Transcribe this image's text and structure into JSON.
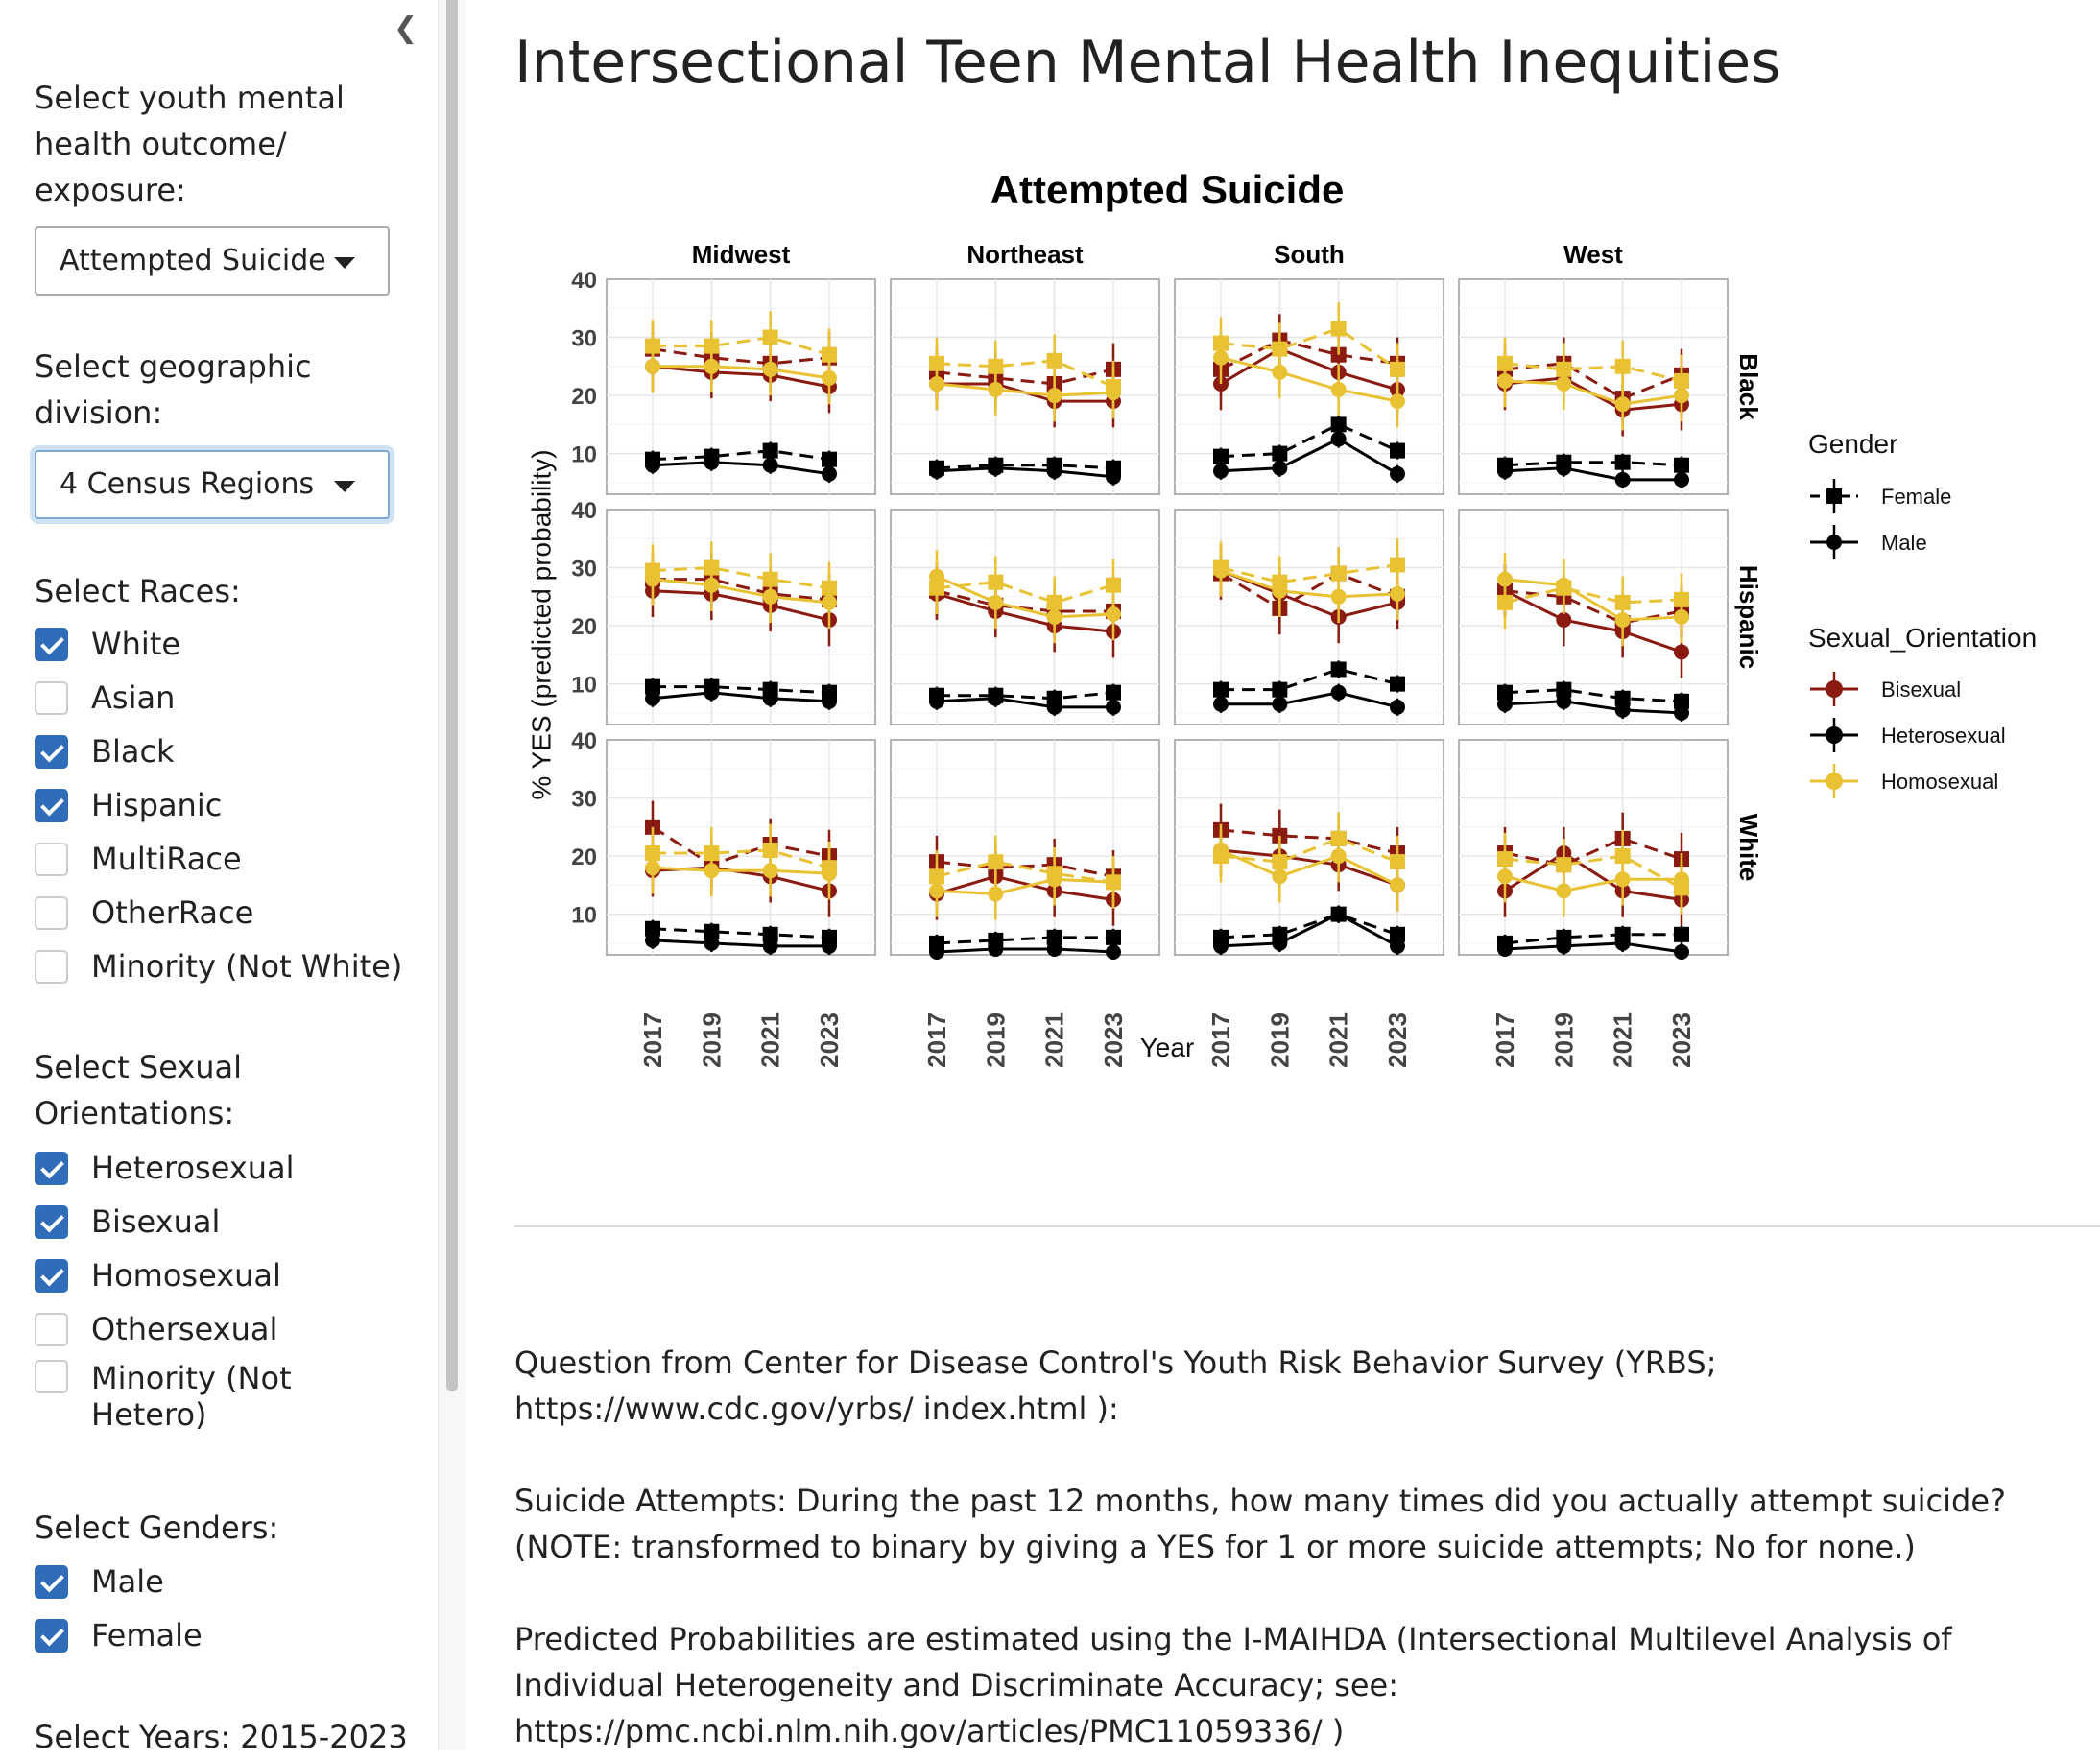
{
  "sidebar": {
    "outcome_label": "Select youth mental health outcome/ exposure:",
    "outcome_value": "Attempted Suicide",
    "division_label": "Select geographic division:",
    "division_value": "4 Census Regions",
    "races_label": "Select Races:",
    "races": [
      {
        "label": "White",
        "checked": true
      },
      {
        "label": "Asian",
        "checked": false
      },
      {
        "label": "Black",
        "checked": true
      },
      {
        "label": "Hispanic",
        "checked": true
      },
      {
        "label": "MultiRace",
        "checked": false
      },
      {
        "label": "OtherRace",
        "checked": false
      },
      {
        "label": "Minority (Not White)",
        "checked": false
      }
    ],
    "orient_label": "Select Sexual Orientations:",
    "orientations": [
      {
        "label": "Heterosexual",
        "checked": true
      },
      {
        "label": "Bisexual",
        "checked": true
      },
      {
        "label": "Homosexual",
        "checked": true
      },
      {
        "label": "Othersexual",
        "checked": false
      },
      {
        "label": "Minority (Not Hetero)",
        "checked": false
      }
    ],
    "genders_label": "Select Genders:",
    "genders": [
      {
        "label": "Male",
        "checked": true
      },
      {
        "label": "Female",
        "checked": true
      }
    ],
    "years_label": "Select Years: 2015-2023"
  },
  "main": {
    "title": "Intersectional Teen Mental Health Inequities",
    "question_text": "Question from Center for Disease Control's Youth Risk Behavior Survey (YRBS; https://www.cdc.gov/yrbs/ index.html ):",
    "item_text": "Suicide Attempts: During the past 12 months, how many times did you actually attempt suicide? (NOTE: transformed to binary by giving a YES for 1 or more suicide attempts; No for none.)",
    "method_text": "Predicted Probabilities are estimated using the I-MAIHDA (Intersectional Multilevel Analysis of Individual Heterogeneity and Discriminate Accuracy; see: https://pmc.ncbi.nlm.nih.gov/articles/PMC11059336/ )"
  },
  "colors": {
    "Bisexual": "#8b1a10",
    "Heterosexual": "#000000",
    "Homosexual": "#e9c233",
    "checkbox": "#2f6db8"
  },
  "chart_data": {
    "type": "line",
    "title": "Attempted Suicide",
    "xlabel": "Year",
    "ylabel": "% YES (predicted probability)",
    "x": [
      2017,
      2019,
      2021,
      2023
    ],
    "ylim": [
      3,
      40
    ],
    "yticks": [
      10,
      20,
      30,
      40
    ],
    "columns": [
      "Midwest",
      "Northeast",
      "South",
      "West"
    ],
    "rows": [
      "Black",
      "Hispanic",
      "White"
    ],
    "legend": {
      "gender_title": "Gender",
      "genders": [
        "Female",
        "Male"
      ],
      "orientation_title": "Sexual_Orientation",
      "orientations": [
        "Bisexual",
        "Heterosexual",
        "Homosexual"
      ]
    },
    "panels": [
      {
        "row": "Black",
        "col": "Midwest",
        "series": [
          {
            "orientation": "Bisexual",
            "gender": "Female",
            "values": [
              28,
              26.5,
              25.5,
              26.5
            ]
          },
          {
            "orientation": "Bisexual",
            "gender": "Male",
            "values": [
              25,
              24,
              23.5,
              21.5
            ]
          },
          {
            "orientation": "Heterosexual",
            "gender": "Female",
            "values": [
              9,
              9.5,
              10.5,
              9
            ]
          },
          {
            "orientation": "Heterosexual",
            "gender": "Male",
            "values": [
              8,
              8.5,
              8,
              6.5
            ]
          },
          {
            "orientation": "Homosexual",
            "gender": "Female",
            "values": [
              28.5,
              28.5,
              30,
              27
            ]
          },
          {
            "orientation": "Homosexual",
            "gender": "Male",
            "values": [
              25,
              25,
              24.5,
              23
            ]
          }
        ]
      },
      {
        "row": "Black",
        "col": "Northeast",
        "series": [
          {
            "orientation": "Bisexual",
            "gender": "Female",
            "values": [
              24,
              23,
              22,
              24.5
            ]
          },
          {
            "orientation": "Bisexual",
            "gender": "Male",
            "values": [
              22,
              22,
              19,
              19
            ]
          },
          {
            "orientation": "Heterosexual",
            "gender": "Female",
            "values": [
              7.5,
              8,
              8,
              7.5
            ]
          },
          {
            "orientation": "Heterosexual",
            "gender": "Male",
            "values": [
              7,
              7.5,
              7,
              6
            ]
          },
          {
            "orientation": "Homosexual",
            "gender": "Female",
            "values": [
              25.5,
              25,
              26,
              21.5
            ]
          },
          {
            "orientation": "Homosexual",
            "gender": "Male",
            "values": [
              22,
              21,
              20,
              20.5
            ]
          }
        ]
      },
      {
        "row": "Black",
        "col": "South",
        "series": [
          {
            "orientation": "Bisexual",
            "gender": "Female",
            "values": [
              24.5,
              29.5,
              27,
              25.5
            ]
          },
          {
            "orientation": "Bisexual",
            "gender": "Male",
            "values": [
              22,
              28,
              24,
              21
            ]
          },
          {
            "orientation": "Heterosexual",
            "gender": "Female",
            "values": [
              9.5,
              10,
              15,
              10.5
            ]
          },
          {
            "orientation": "Heterosexual",
            "gender": "Male",
            "values": [
              7,
              7.5,
              12.5,
              6.5
            ]
          },
          {
            "orientation": "Homosexual",
            "gender": "Female",
            "values": [
              29,
              28,
              31.5,
              24.5
            ]
          },
          {
            "orientation": "Homosexual",
            "gender": "Male",
            "values": [
              26.5,
              24,
              21,
              19
            ]
          }
        ]
      },
      {
        "row": "Black",
        "col": "West",
        "series": [
          {
            "orientation": "Bisexual",
            "gender": "Female",
            "values": [
              24.5,
              25.5,
              19.5,
              23.5
            ]
          },
          {
            "orientation": "Bisexual",
            "gender": "Male",
            "values": [
              22,
              23,
              17.5,
              18.5
            ]
          },
          {
            "orientation": "Heterosexual",
            "gender": "Female",
            "values": [
              8,
              8.5,
              8.5,
              8
            ]
          },
          {
            "orientation": "Heterosexual",
            "gender": "Male",
            "values": [
              7,
              7.5,
              5.5,
              5.5
            ]
          },
          {
            "orientation": "Homosexual",
            "gender": "Female",
            "values": [
              25.5,
              24.5,
              25,
              22.5
            ]
          },
          {
            "orientation": "Homosexual",
            "gender": "Male",
            "values": [
              22.5,
              22,
              18.5,
              20
            ]
          }
        ]
      },
      {
        "row": "Hispanic",
        "col": "Midwest",
        "series": [
          {
            "orientation": "Bisexual",
            "gender": "Female",
            "values": [
              28,
              28,
              25.5,
              24.5
            ]
          },
          {
            "orientation": "Bisexual",
            "gender": "Male",
            "values": [
              26,
              25.5,
              23.5,
              21
            ]
          },
          {
            "orientation": "Heterosexual",
            "gender": "Female",
            "values": [
              9.5,
              9.5,
              9,
              8.5
            ]
          },
          {
            "orientation": "Heterosexual",
            "gender": "Male",
            "values": [
              7.5,
              8.5,
              7.5,
              7
            ]
          },
          {
            "orientation": "Homosexual",
            "gender": "Female",
            "values": [
              29.5,
              30,
              28,
              26.5
            ]
          },
          {
            "orientation": "Homosexual",
            "gender": "Male",
            "values": [
              28,
              27,
              25,
              24
            ]
          }
        ]
      },
      {
        "row": "Hispanic",
        "col": "Northeast",
        "series": [
          {
            "orientation": "Bisexual",
            "gender": "Female",
            "values": [
              26,
              23.5,
              22.5,
              22.5
            ]
          },
          {
            "orientation": "Bisexual",
            "gender": "Male",
            "values": [
              25.5,
              22.5,
              20,
              19
            ]
          },
          {
            "orientation": "Heterosexual",
            "gender": "Female",
            "values": [
              8,
              8,
              7.5,
              8.5
            ]
          },
          {
            "orientation": "Heterosexual",
            "gender": "Male",
            "values": [
              7,
              7.5,
              6,
              6
            ]
          },
          {
            "orientation": "Homosexual",
            "gender": "Female",
            "values": [
              26.5,
              27.5,
              24,
              27
            ]
          },
          {
            "orientation": "Homosexual",
            "gender": "Male",
            "values": [
              28.5,
              24,
              21.5,
              22
            ]
          }
        ]
      },
      {
        "row": "Hispanic",
        "col": "South",
        "series": [
          {
            "orientation": "Bisexual",
            "gender": "Female",
            "values": [
              29,
              23,
              29,
              25
            ]
          },
          {
            "orientation": "Bisexual",
            "gender": "Male",
            "values": [
              29.5,
              25.5,
              21.5,
              24
            ]
          },
          {
            "orientation": "Heterosexual",
            "gender": "Female",
            "values": [
              9,
              9,
              12.5,
              10
            ]
          },
          {
            "orientation": "Heterosexual",
            "gender": "Male",
            "values": [
              6.5,
              6.5,
              8.5,
              6
            ]
          },
          {
            "orientation": "Homosexual",
            "gender": "Female",
            "values": [
              30,
              27.5,
              29,
              30.5
            ]
          },
          {
            "orientation": "Homosexual",
            "gender": "Male",
            "values": [
              29.5,
              26,
              25,
              25.5
            ]
          }
        ]
      },
      {
        "row": "Hispanic",
        "col": "West",
        "series": [
          {
            "orientation": "Bisexual",
            "gender": "Female",
            "values": [
              26,
              25,
              20.5,
              22.5
            ]
          },
          {
            "orientation": "Bisexual",
            "gender": "Male",
            "values": [
              26,
              21,
              19,
              15.5
            ]
          },
          {
            "orientation": "Heterosexual",
            "gender": "Female",
            "values": [
              8.5,
              9,
              7.5,
              7
            ]
          },
          {
            "orientation": "Heterosexual",
            "gender": "Male",
            "values": [
              6.5,
              7,
              5.5,
              5
            ]
          },
          {
            "orientation": "Homosexual",
            "gender": "Female",
            "values": [
              24,
              26.5,
              24,
              24.5
            ]
          },
          {
            "orientation": "Homosexual",
            "gender": "Male",
            "values": [
              28,
              27,
              21,
              21.5
            ]
          }
        ]
      },
      {
        "row": "White",
        "col": "Midwest",
        "series": [
          {
            "orientation": "Bisexual",
            "gender": "Female",
            "values": [
              25,
              18.5,
              22,
              20
            ]
          },
          {
            "orientation": "Bisexual",
            "gender": "Male",
            "values": [
              17.5,
              18,
              16.5,
              14
            ]
          },
          {
            "orientation": "Heterosexual",
            "gender": "Female",
            "values": [
              7.5,
              7,
              6.5,
              6
            ]
          },
          {
            "orientation": "Heterosexual",
            "gender": "Male",
            "values": [
              5.5,
              5,
              4.5,
              4.5
            ]
          },
          {
            "orientation": "Homosexual",
            "gender": "Female",
            "values": [
              20.5,
              20.5,
              21,
              18
            ]
          },
          {
            "orientation": "Homosexual",
            "gender": "Male",
            "values": [
              18,
              17.5,
              17.5,
              17
            ]
          }
        ]
      },
      {
        "row": "White",
        "col": "Northeast",
        "series": [
          {
            "orientation": "Bisexual",
            "gender": "Female",
            "values": [
              19,
              18,
              18.5,
              16.5
            ]
          },
          {
            "orientation": "Bisexual",
            "gender": "Male",
            "values": [
              13.5,
              16.5,
              14,
              12.5
            ]
          },
          {
            "orientation": "Heterosexual",
            "gender": "Female",
            "values": [
              5,
              5.5,
              6,
              6
            ]
          },
          {
            "orientation": "Heterosexual",
            "gender": "Male",
            "values": [
              3.5,
              4,
              4,
              3.5
            ]
          },
          {
            "orientation": "Homosexual",
            "gender": "Female",
            "values": [
              16.5,
              19,
              17,
              15.5
            ]
          },
          {
            "orientation": "Homosexual",
            "gender": "Male",
            "values": [
              14,
              13.5,
              16,
              15.5
            ]
          }
        ]
      },
      {
        "row": "White",
        "col": "South",
        "series": [
          {
            "orientation": "Bisexual",
            "gender": "Female",
            "values": [
              24.5,
              23.5,
              23,
              20.5
            ]
          },
          {
            "orientation": "Bisexual",
            "gender": "Male",
            "values": [
              21,
              20,
              18.5,
              15
            ]
          },
          {
            "orientation": "Heterosexual",
            "gender": "Female",
            "values": [
              6,
              6.5,
              10,
              6.5
            ]
          },
          {
            "orientation": "Heterosexual",
            "gender": "Male",
            "values": [
              4.5,
              5,
              10,
              4.5
            ]
          },
          {
            "orientation": "Homosexual",
            "gender": "Female",
            "values": [
              20,
              19,
              23,
              19
            ]
          },
          {
            "orientation": "Homosexual",
            "gender": "Male",
            "values": [
              21,
              16.5,
              20,
              15
            ]
          }
        ]
      },
      {
        "row": "White",
        "col": "West",
        "series": [
          {
            "orientation": "Bisexual",
            "gender": "Female",
            "values": [
              20.5,
              18.5,
              23,
              19.5
            ]
          },
          {
            "orientation": "Bisexual",
            "gender": "Male",
            "values": [
              14,
              20.5,
              14,
              12.5
            ]
          },
          {
            "orientation": "Heterosexual",
            "gender": "Female",
            "values": [
              5,
              6,
              6.5,
              6.5
            ]
          },
          {
            "orientation": "Heterosexual",
            "gender": "Male",
            "values": [
              4,
              4.5,
              5,
              3.5
            ]
          },
          {
            "orientation": "Homosexual",
            "gender": "Female",
            "values": [
              19.5,
              18.5,
              20,
              14.5
            ]
          },
          {
            "orientation": "Homosexual",
            "gender": "Male",
            "values": [
              16.5,
              14,
              16,
              16
            ]
          }
        ]
      }
    ]
  }
}
